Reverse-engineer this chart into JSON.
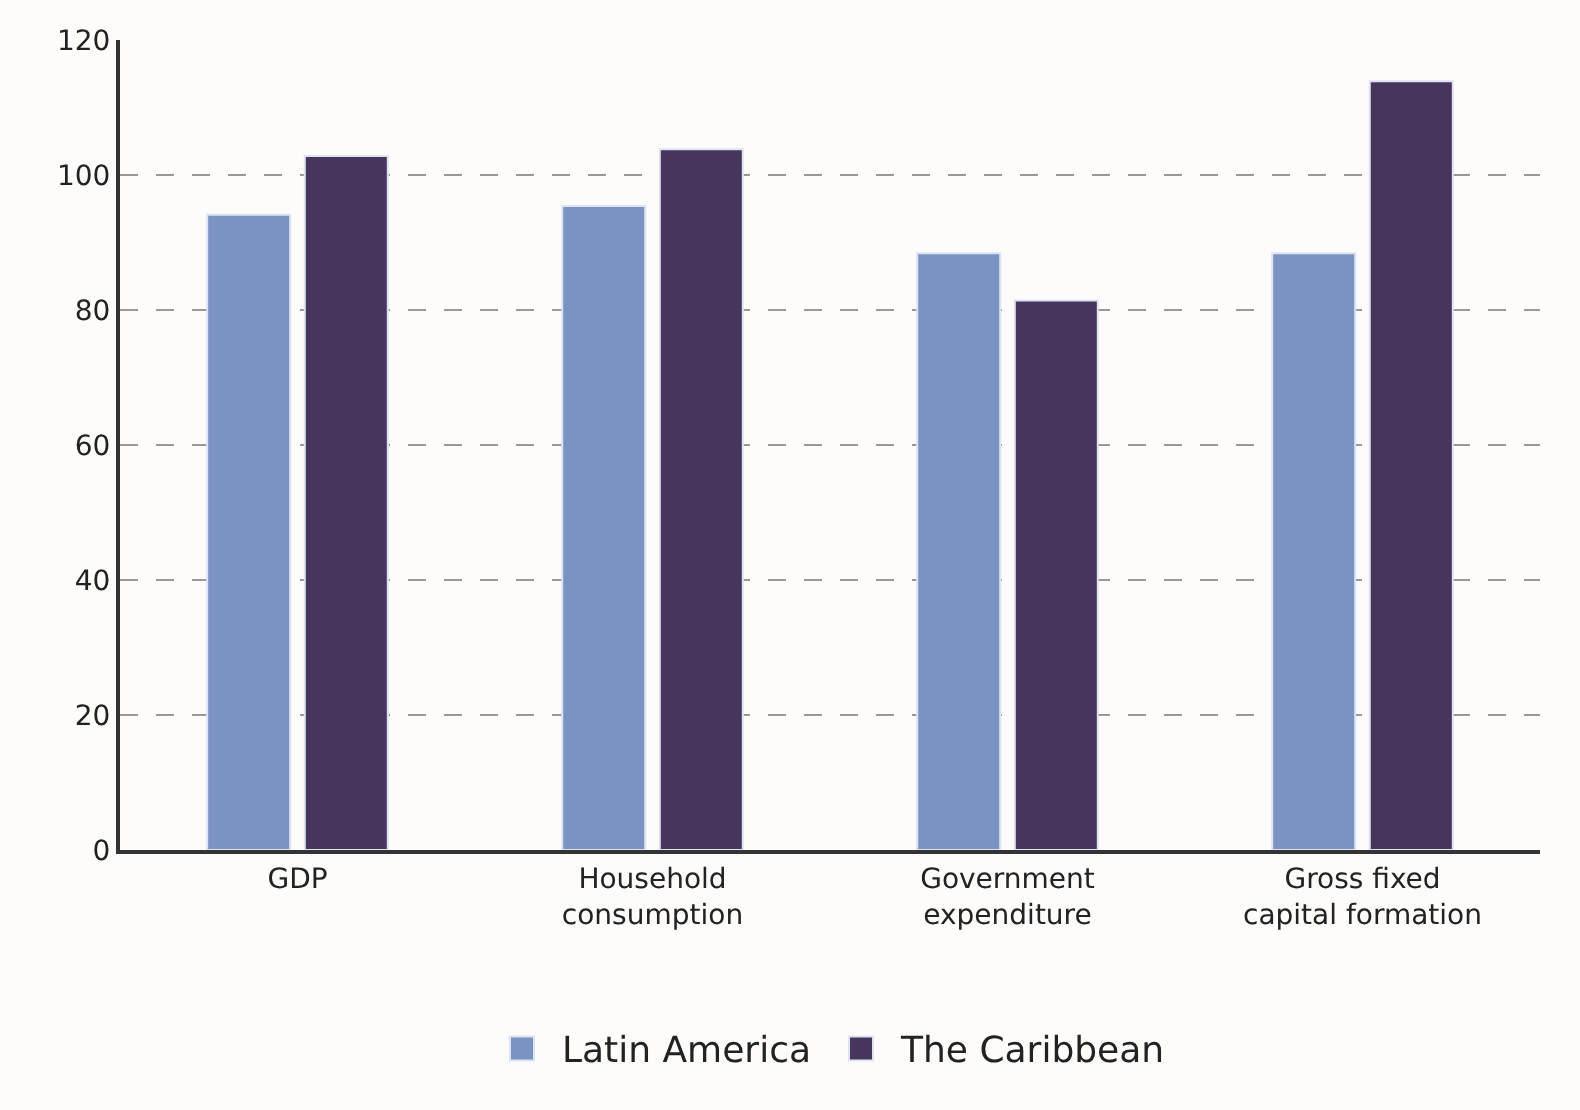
{
  "chart_data": {
    "type": "bar",
    "categories": [
      "GDP",
      "Household\nconsumption",
      "Government\nexpenditure",
      "Gross fixed\ncapital formation"
    ],
    "series": [
      {
        "name": "Latin America",
        "color": "#7b93c2",
        "values": [
          94.1,
          95.4,
          88.4,
          88.4
        ]
      },
      {
        "name": "The Caribbean",
        "color": "#46365c",
        "values": [
          102.8,
          103.8,
          81.4,
          113.9
        ]
      }
    ],
    "ylim": [
      0,
      120
    ],
    "yticks": [
      0,
      20,
      40,
      60,
      80,
      100,
      120
    ],
    "grid": "y",
    "legend": "bottom"
  }
}
